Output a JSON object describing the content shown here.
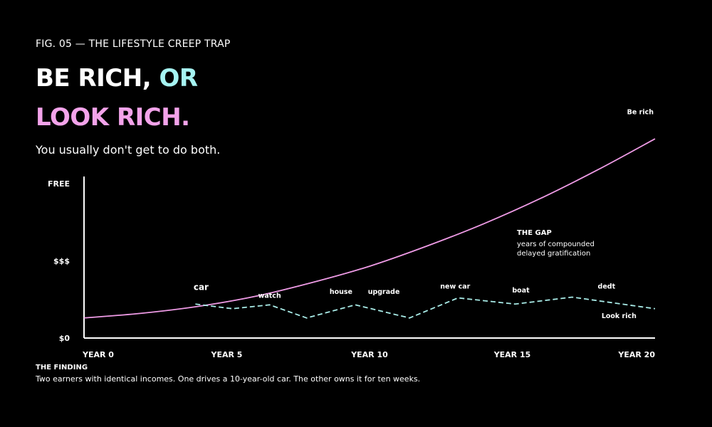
{
  "header": {
    "fig_label": "FIG. 05 — THE LIFESTYLE CREEP TRAP",
    "headline_part1": "BE RICH, ",
    "headline_part2": "OR",
    "headline_line2": "LOOK RICH.",
    "subtitle": "You usually don't get to do both."
  },
  "finding": {
    "title": "THE FINDING",
    "text": "Two earners with identical incomes. One drives a 10-year-old car. The other owns it for ten weeks."
  },
  "colors": {
    "accent_cyan": "#a6f4f2",
    "accent_pink": "#f3a3ea",
    "be_rich_line": "#ef9be6",
    "look_rich_line": "#a9ece8",
    "axis": "#ffffff"
  },
  "chart_data": {
    "type": "line",
    "x_ticks": [
      {
        "x": 0,
        "label": "YEAR 0"
      },
      {
        "x": 5,
        "label": "YEAR 5"
      },
      {
        "x": 10,
        "label": "YEAR 10"
      },
      {
        "x": 15,
        "label": "YEAR 15"
      },
      {
        "x": 20,
        "label": "YEAR 20"
      }
    ],
    "y_ticks": [
      {
        "y": 0,
        "label": "$0"
      },
      {
        "y": 1,
        "label": "$$$"
      },
      {
        "y": 2,
        "label": "FREE"
      }
    ],
    "xlim": [
      0,
      20
    ],
    "ylim": [
      0,
      2
    ],
    "series": [
      {
        "name": "Be rich",
        "style": "solid",
        "x": [
          0,
          2,
          4,
          6,
          8,
          10,
          12,
          14,
          16,
          18,
          20
        ],
        "y": [
          0.26,
          0.32,
          0.41,
          0.54,
          0.72,
          0.93,
          1.19,
          1.48,
          1.81,
          2.18,
          2.58
        ]
      },
      {
        "name": "Look rich",
        "style": "dashed",
        "x": [
          3.9,
          5.2,
          6.5,
          7.8,
          9.5,
          11.4,
          13.1,
          15.1,
          17.1,
          20
        ],
        "y": [
          0.44,
          0.38,
          0.43,
          0.26,
          0.43,
          0.26,
          0.52,
          0.44,
          0.53,
          0.38
        ]
      }
    ],
    "annotations": [
      {
        "text": "car",
        "x": 4.1,
        "y": 0.62,
        "size": "large"
      },
      {
        "text": "watch",
        "x": 6.5,
        "y": 0.52
      },
      {
        "text": "house",
        "x": 9.0,
        "y": 0.57
      },
      {
        "text": "upgrade",
        "x": 10.5,
        "y": 0.57
      },
      {
        "text": "new car",
        "x": 13.0,
        "y": 0.64
      },
      {
        "text": "boat",
        "x": 15.3,
        "y": 0.59
      },
      {
        "text": "dedt",
        "x": 18.3,
        "y": 0.64
      },
      {
        "text": "Look rich",
        "x": 19.2,
        "y": 0.26
      },
      {
        "text": "Be rich",
        "x": 19.8,
        "y": 2.9
      }
    ],
    "gap_note": {
      "title": "THE GAP",
      "line1": "years of compounded",
      "line2": "delayed gratification"
    },
    "grid": false,
    "legend": "none"
  }
}
